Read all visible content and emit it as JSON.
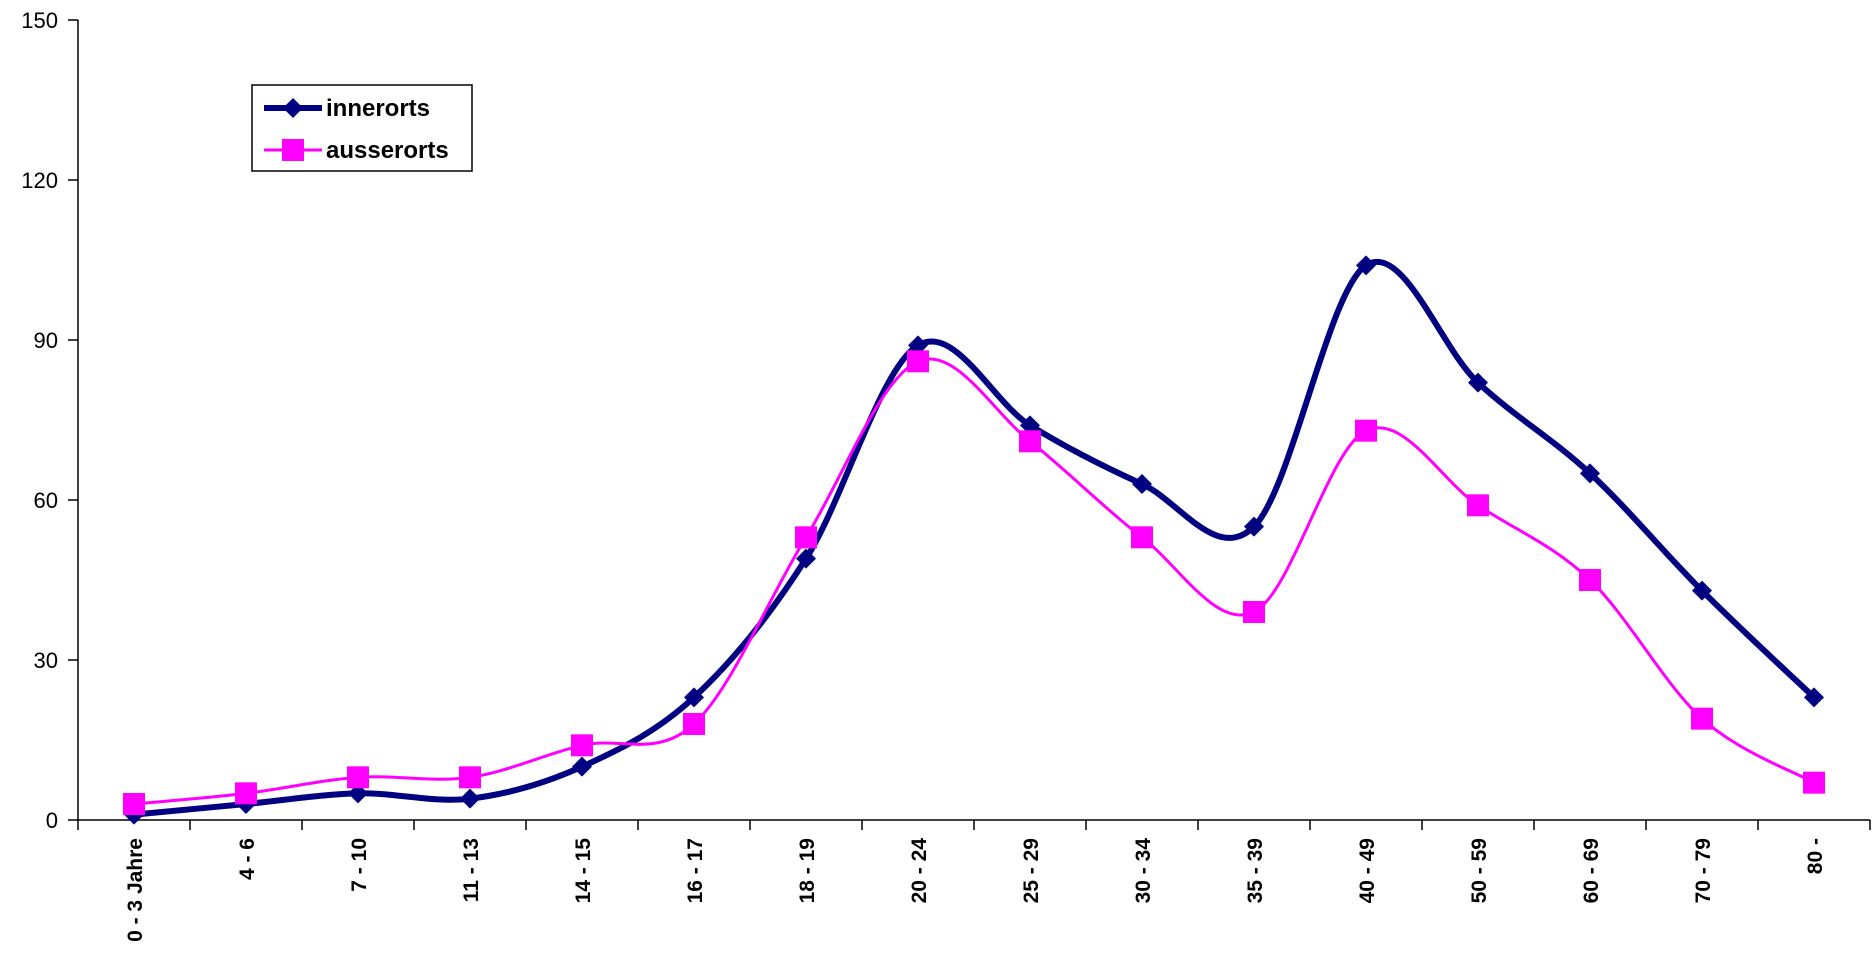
{
  "chart_data": {
    "type": "line",
    "title": "",
    "xlabel": "",
    "ylabel": "",
    "ylim": [
      0,
      150
    ],
    "yticks": [
      0,
      30,
      60,
      90,
      120,
      150
    ],
    "grid": false,
    "smooth": true,
    "legend_position": "top-left",
    "categories": [
      "0 - 3 Jahre",
      "4 - 6",
      "7 - 10",
      "11 - 13",
      "14 - 15",
      "16 - 17",
      "18 - 19",
      "20 - 24",
      "25 - 29",
      "30 - 34",
      "35 - 39",
      "40 - 49",
      "50 - 59",
      "60 - 69",
      "70 - 79",
      "80 -"
    ],
    "series": [
      {
        "name": "innerorts",
        "color": "#000080",
        "marker": "diamond",
        "values": [
          1,
          3,
          5,
          4,
          10,
          23,
          49,
          89,
          74,
          63,
          55,
          104,
          82,
          65,
          43,
          23
        ]
      },
      {
        "name": "ausserorts",
        "color": "#ff00ff",
        "marker": "square",
        "values": [
          3,
          5,
          8,
          8,
          14,
          18,
          53,
          86,
          71,
          53,
          39,
          73,
          59,
          45,
          19,
          7
        ]
      }
    ]
  }
}
